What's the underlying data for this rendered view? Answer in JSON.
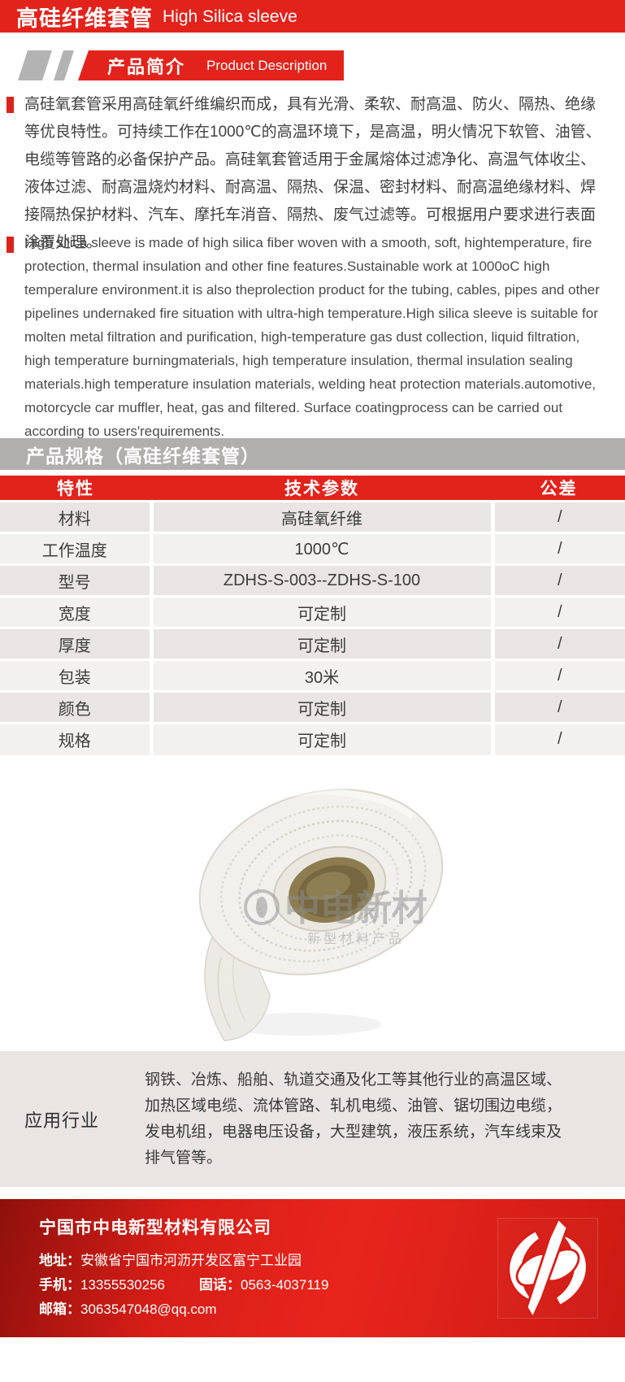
{
  "header": {
    "title_zh": "高硅纤维套管",
    "title_en": "High Silica sleeve"
  },
  "intro_badge": {
    "label_zh": "产品简介",
    "label_en": "Product Description"
  },
  "description_zh": "高硅氧套管采用高硅氧纤维编织而成，具有光滑、柔软、耐高温、防火、隔热、绝缘等优良特性。可持续工作在1000℃的高温环境下，是高温，明火情况下软管、油管、电缆等管路的必备保护产品。高硅氧套管适用于金属熔体过滤净化、高温气体收尘、液体过滤、耐高温烧灼材料、耐高温、隔热、保温、密封材料、耐高温绝缘材料、焊接隔热保护材料、汽车、摩托车消音、隔热、废气过滤等。可根据用户要求进行表面涂覆处理。",
  "description_en": "High silica sleeve is made of high silica fiber woven with a smooth, soft, hightemperature, fire protection, thermal insulation and other fine features.Sustainable work at 1000oC high temperalure environment.it is also theprolection product for the tubing, cables, pipes and other pipelines undernaked fire situation with ultra-high temperature.High silica sleeve is suitable for molten metal filtration and purification, high-temperature gas dust collection, liquid filtration, high temperature burningmaterials, high temperature insulation, thermal insulation sealing materials.high temperature insulation materials, welding heat protection materials.automotive, motorcycle car muffler, heat, gas and filtered. Surface coatingprocess can be carried out according to users'requirements.",
  "spec_section": {
    "title": "产品规格（高硅纤维套管）"
  },
  "spec_table": {
    "headers": [
      "特性",
      "技术参数",
      "公差"
    ],
    "rows": [
      [
        "材料",
        "高硅氧纤维",
        "/"
      ],
      [
        "工作温度",
        "1000℃",
        "/"
      ],
      [
        "型号",
        "ZDHS-S-003--ZDHS-S-100",
        "/"
      ],
      [
        "宽度",
        "可定制",
        "/"
      ],
      [
        "厚度",
        "可定制",
        "/"
      ],
      [
        "包装",
        "30米",
        "/"
      ],
      [
        "颜色",
        "可定制",
        "/"
      ],
      [
        "规格",
        "可定制",
        "/"
      ]
    ]
  },
  "product_image": {
    "watermark_title": "中电新材",
    "watermark_subtitle": "新型材料产品"
  },
  "application": {
    "label": "应用行业",
    "text": "钢铁、冶炼、船舶、轨道交通及化工等其他行业的高温区域、加热区域电缆、流体管路、轧机电缆、油管、锯切围边电缆，发电机组，电器电压设备，大型建筑，液压系统，汽车线束及排气管等。"
  },
  "footer": {
    "company": "宁国市中电新型材料有限公司",
    "address_label": "地址：",
    "address": "安徽省宁国市河沥开发区富宁工业园",
    "mobile_label": "手机：",
    "mobile": "13355530256",
    "tel_label": "固话：",
    "tel": "0563-4037119",
    "email_label": "邮箱：",
    "email": "3063547048@qq.com"
  },
  "colors": {
    "accent_red": "#e2231c",
    "bar_gray": "#b1aeae",
    "app_bg": "#e8e5e3"
  }
}
